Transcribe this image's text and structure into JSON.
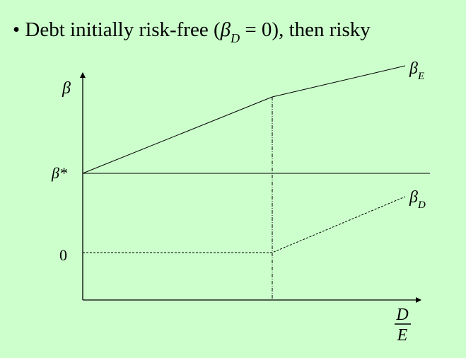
{
  "bullet": {
    "marker": "•",
    "prefix": "Debt initially risk-free (",
    "beta_symbol": "β",
    "beta_subscript": "D",
    "equals_zero": " = 0), then risky"
  },
  "diagram": {
    "y_axis_label": "β",
    "y_tick_beta_star": "β*",
    "y_tick_zero": "0",
    "x_axis_label_numerator": "D",
    "x_axis_label_denominator": "E",
    "beta_e_label": "β",
    "beta_e_subscript": "E",
    "beta_d_label": "β",
    "beta_d_subscript": "D"
  },
  "colors": {
    "background": "#ccffcc",
    "line": "#000000"
  }
}
